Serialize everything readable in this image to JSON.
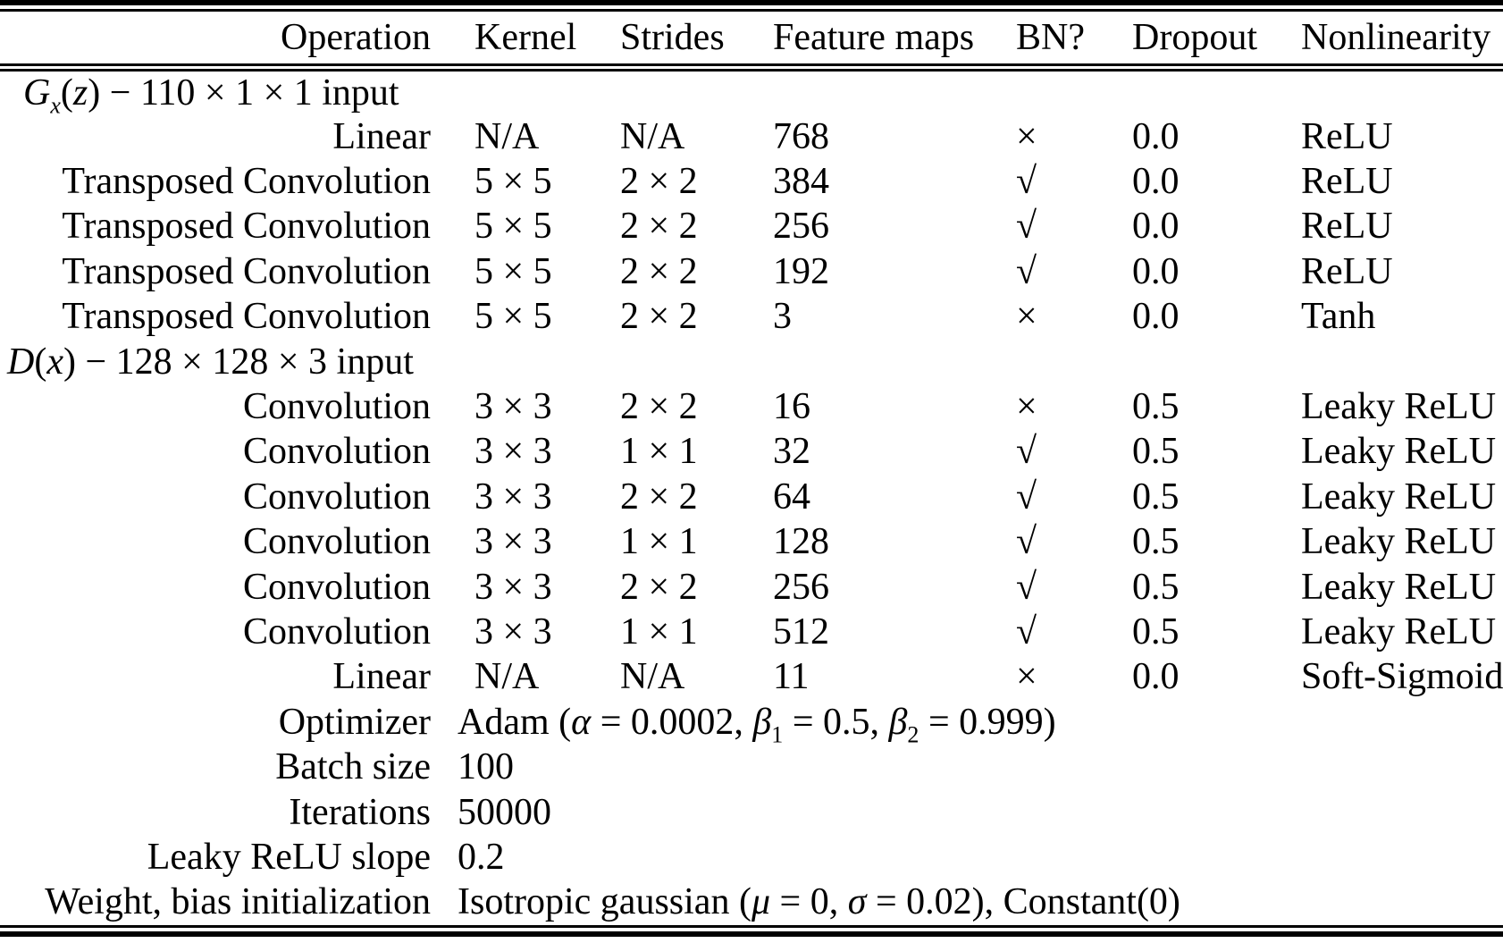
{
  "page": {
    "background": "#ffffff",
    "text_color": "#000000"
  },
  "table": {
    "columns": [
      "Operation",
      "Kernel",
      "Strides",
      "Feature maps",
      "BN?",
      "Dropout",
      "Nonlinearity"
    ],
    "column_keys": [
      "operation",
      "kernel",
      "strides",
      "feature-maps",
      "bn",
      "dropout",
      "nonlinearity"
    ],
    "symbols": {
      "batchnorm_yes": "√",
      "batchnorm_no": "×"
    },
    "sections": [
      {
        "name": "generator",
        "title_parts": [
          {
            "t": "G",
            "i": true
          },
          {
            "t": "x",
            "i": true,
            "sub": true
          },
          {
            "t": "("
          },
          {
            "t": "z",
            "i": true
          },
          {
            "t": ") − 110 × 1 × 1 input"
          }
        ],
        "rows": [
          {
            "cells": [
              "Linear",
              "N/A",
              "N/A",
              "768",
              "×",
              "0.0",
              "ReLU"
            ]
          },
          {
            "cells": [
              "Transposed Convolution",
              "5 × 5",
              "2 × 2",
              "384",
              "√",
              "0.0",
              "ReLU"
            ]
          },
          {
            "cells": [
              "Transposed Convolution",
              "5 × 5",
              "2 × 2",
              "256",
              "√",
              "0.0",
              "ReLU"
            ]
          },
          {
            "cells": [
              "Transposed Convolution",
              "5 × 5",
              "2 × 2",
              "192",
              "√",
              "0.0",
              "ReLU"
            ]
          },
          {
            "cells": [
              "Transposed Convolution",
              "5 × 5",
              "2 × 2",
              "3",
              "×",
              "0.0",
              "Tanh"
            ]
          }
        ]
      },
      {
        "name": "discriminator",
        "title_parts": [
          {
            "t": "D",
            "i": true
          },
          {
            "t": "("
          },
          {
            "t": "x",
            "i": true
          },
          {
            "t": ") − 128 × 128 × 3 input"
          }
        ],
        "rows": [
          {
            "cells": [
              "Convolution",
              "3 × 3",
              "2 × 2",
              "16",
              "×",
              "0.5",
              "Leaky ReLU"
            ]
          },
          {
            "cells": [
              "Convolution",
              "3 × 3",
              "1 × 1",
              "32",
              "√",
              "0.5",
              "Leaky ReLU"
            ]
          },
          {
            "cells": [
              "Convolution",
              "3 × 3",
              "2 × 2",
              "64",
              "√",
              "0.5",
              "Leaky ReLU"
            ]
          },
          {
            "cells": [
              "Convolution",
              "3 × 3",
              "1 × 1",
              "128",
              "√",
              "0.5",
              "Leaky ReLU"
            ]
          },
          {
            "cells": [
              "Convolution",
              "3 × 3",
              "2 × 2",
              "256",
              "√",
              "0.5",
              "Leaky ReLU"
            ]
          },
          {
            "cells": [
              "Convolution",
              "3 × 3",
              "1 × 1",
              "512",
              "√",
              "0.5",
              "Leaky ReLU"
            ]
          },
          {
            "cells": [
              "Linear",
              "N/A",
              "N/A",
              "11",
              "×",
              "0.0",
              "Soft-Sigmoid"
            ]
          }
        ]
      }
    ],
    "config": [
      {
        "label": "Optimizer",
        "value_parts": [
          {
            "t": "Adam ("
          },
          {
            "t": "α",
            "i": true
          },
          {
            "t": " = 0.0002, "
          },
          {
            "t": "β",
            "i": true
          },
          {
            "t": "1",
            "sub": true
          },
          {
            "t": " = 0.5, "
          },
          {
            "t": "β",
            "i": true
          },
          {
            "t": "2",
            "sub": true
          },
          {
            "t": " = 0.999)"
          }
        ]
      },
      {
        "label": "Batch size",
        "value_parts": [
          {
            "t": "100"
          }
        ]
      },
      {
        "label": "Iterations",
        "value_parts": [
          {
            "t": "50000"
          }
        ]
      },
      {
        "label": "Leaky ReLU slope",
        "value_parts": [
          {
            "t": "0.2"
          }
        ]
      },
      {
        "label": "Weight, bias initialization",
        "value_parts": [
          {
            "t": "Isotropic gaussian ("
          },
          {
            "t": "μ",
            "i": true
          },
          {
            "t": " = 0, "
          },
          {
            "t": "σ",
            "i": true
          },
          {
            "t": " = 0.02), Constant(0)"
          }
        ]
      }
    ]
  }
}
